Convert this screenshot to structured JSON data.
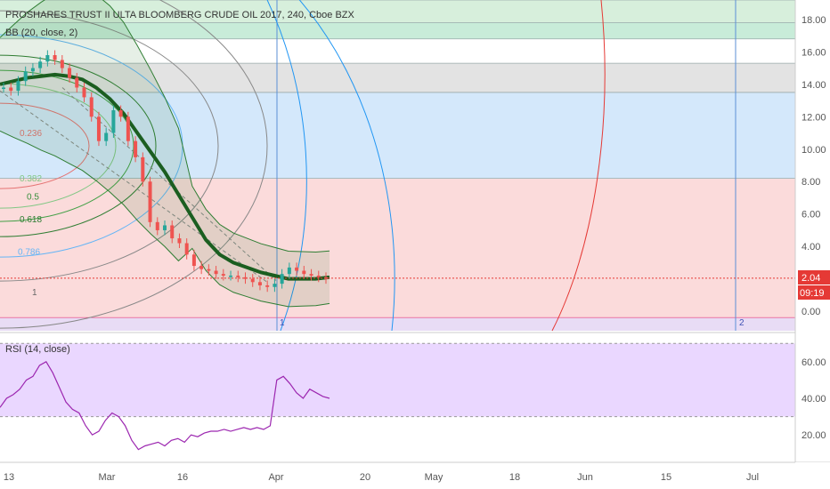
{
  "header": {
    "title": "PROSHARES TRUST II ULTA BLOOMBERG CRUDE OIL 2017, 240, Cboe BZX",
    "bb_indicator": "BB (20, close, 2)",
    "rsi_indicator": "RSI (14, close)"
  },
  "price_badge": {
    "price": "2.04",
    "countdown": "09:19",
    "color": "#e53935"
  },
  "colors": {
    "candle_up": "#26a69a",
    "candle_down": "#ef5350",
    "bb_basis": "#1b5e20",
    "bb_band": "#2e7d32",
    "rsi_line": "#9c27b0",
    "rsi_fill": "#ead7ff"
  },
  "chart_data": [
    {
      "type": "line",
      "name": "main-price",
      "ylim": [
        -1.2,
        19.2
      ],
      "y_ticks": [
        "0.00",
        "2.00",
        "4.00",
        "6.00",
        "8.00",
        "10.00",
        "12.00",
        "14.00",
        "16.00",
        "18.00"
      ],
      "x_tick_labels": [
        "13",
        "Mar",
        "16",
        "Apr",
        "20",
        "May",
        "18",
        "Jun",
        "15",
        "Jul"
      ],
      "last_price": 2.04,
      "price_close_approx": [
        13.8,
        13.6,
        14.2,
        14.8,
        15.0,
        15.4,
        15.8,
        15.5,
        15.0,
        14.4,
        13.8,
        13.2,
        12.0,
        10.5,
        11.0,
        12.4,
        12.0,
        10.5,
        9.5,
        8.0,
        5.5,
        5.0,
        5.3,
        4.5,
        4.2,
        3.5,
        2.8,
        2.6,
        2.5,
        2.3,
        2.2,
        2.2,
        2.1,
        2.0,
        1.8,
        1.6,
        1.5,
        1.7,
        2.3,
        2.7,
        2.5,
        2.3,
        2.2,
        2.1,
        2.0
      ],
      "bb_basis_approx": [
        14.0,
        14.2,
        14.4,
        14.5,
        14.6,
        14.5,
        14.3,
        13.8,
        13.1,
        12.2,
        11.0,
        9.8,
        8.6,
        7.2,
        5.8,
        4.4,
        3.5,
        3.0,
        2.7,
        2.4,
        2.2,
        2.0,
        2.0,
        2.0,
        2.1
      ],
      "horizontal_zones": [
        {
          "from": 17.8,
          "to": 19.2,
          "color": "#d7efdc"
        },
        {
          "from": 16.8,
          "to": 17.8,
          "color": "#c8ecd9"
        },
        {
          "from": 15.3,
          "to": 16.8,
          "color": "#ffffff"
        },
        {
          "from": 13.5,
          "to": 15.3,
          "color": "#e3e3e3"
        },
        {
          "from": 8.2,
          "to": 13.5,
          "color": "#d4e8fb"
        },
        {
          "from": -0.4,
          "to": 8.2,
          "color": "#fbdbdb"
        }
      ],
      "fib_levels": [
        "0.236",
        "0.382",
        "0.5",
        "0.618",
        "0.786",
        "1"
      ],
      "fib_time_labels": [
        "1",
        "2"
      ]
    },
    {
      "type": "line",
      "name": "rsi",
      "ylim": [
        5,
        75
      ],
      "y_ticks": [
        "20.00",
        "40.00",
        "60.00"
      ],
      "bands": [
        30,
        70
      ],
      "values_approx": [
        35,
        40,
        42,
        45,
        50,
        52,
        58,
        60,
        54,
        46,
        38,
        34,
        32,
        25,
        20,
        22,
        28,
        32,
        30,
        25,
        17,
        12,
        14,
        15,
        16,
        14,
        17,
        18,
        16,
        20,
        19,
        21,
        22,
        22,
        23,
        22,
        23,
        24,
        23,
        24,
        23,
        25,
        50,
        52,
        48,
        43,
        40,
        45,
        43,
        41,
        40
      ]
    }
  ]
}
